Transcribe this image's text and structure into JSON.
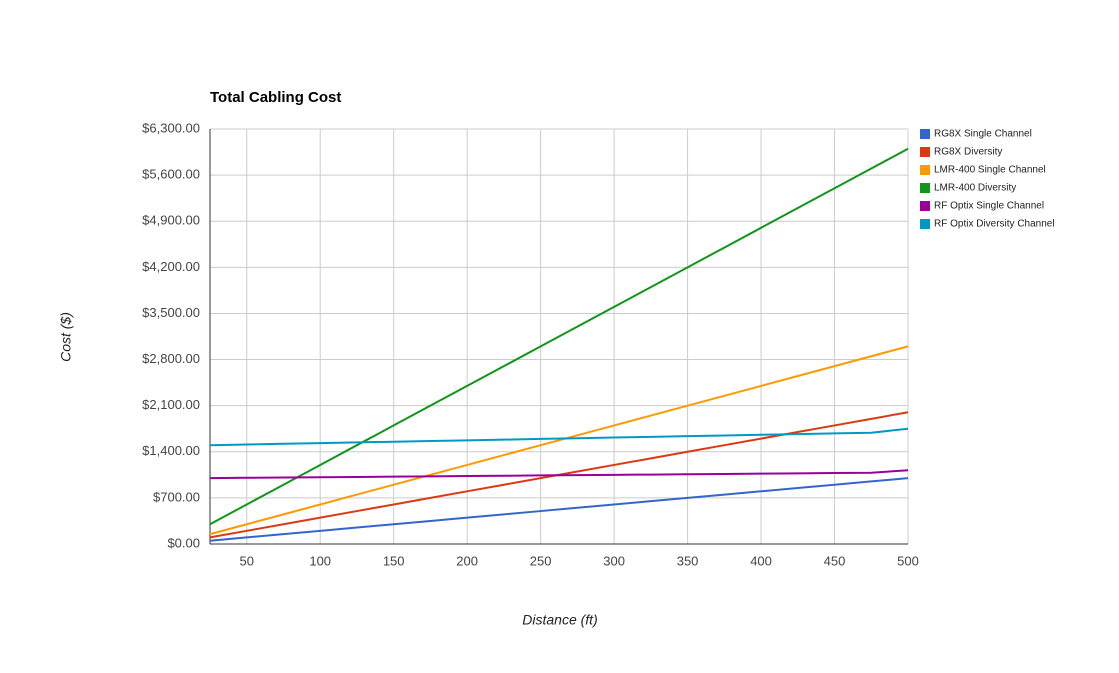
{
  "chart_data": {
    "type": "line",
    "title": "Total Cabling Cost",
    "x_label": "Distance (ft)",
    "y_label": "Cost ($)",
    "x": [
      25,
      50,
      75,
      100,
      125,
      150,
      175,
      200,
      225,
      250,
      275,
      300,
      325,
      350,
      375,
      400,
      425,
      450,
      475,
      500
    ],
    "series": [
      {
        "name": "RG8X Single Channel",
        "color": "#3366cc",
        "values": [
          50,
          100,
          150,
          200,
          250,
          300,
          350,
          400,
          450,
          500,
          550,
          600,
          650,
          700,
          750,
          800,
          850,
          900,
          950,
          1000
        ]
      },
      {
        "name": "RG8X Diversity",
        "color": "#dc3912",
        "values": [
          100,
          200,
          300,
          400,
          500,
          600,
          700,
          800,
          900,
          1000,
          1100,
          1200,
          1300,
          1400,
          1500,
          1600,
          1700,
          1800,
          1900,
          2000
        ]
      },
      {
        "name": "LMR-400 Single Channel",
        "color": "#ff9900",
        "values": [
          150,
          300,
          450,
          600,
          750,
          900,
          1050,
          1200,
          1350,
          1500,
          1650,
          1800,
          1950,
          2100,
          2250,
          2400,
          2550,
          2700,
          2850,
          3000
        ]
      },
      {
        "name": "LMR-400 Diversity",
        "color": "#109618",
        "values": [
          300,
          600,
          900,
          1200,
          1500,
          1800,
          2100,
          2400,
          2700,
          3000,
          3300,
          3600,
          3900,
          4200,
          4500,
          4800,
          5100,
          5400,
          5700,
          6000
        ]
      },
      {
        "name": "RF Optix Single Channel",
        "color": "#990099",
        "values": [
          1000,
          1005,
          1009,
          1014,
          1018,
          1023,
          1027,
          1032,
          1036,
          1041,
          1045,
          1050,
          1054,
          1059,
          1063,
          1068,
          1072,
          1077,
          1081,
          1120
        ]
      },
      {
        "name": "RF Optix Diversity Channel",
        "color": "#0099c6",
        "values": [
          1500,
          1511,
          1521,
          1532,
          1542,
          1553,
          1563,
          1574,
          1584,
          1595,
          1605,
          1616,
          1626,
          1637,
          1647,
          1658,
          1668,
          1679,
          1689,
          1750
        ]
      }
    ],
    "xlim": [
      25,
      500
    ],
    "xticks": [
      50,
      100,
      150,
      200,
      250,
      300,
      350,
      400,
      450,
      500
    ],
    "ylim": [
      0,
      6300
    ],
    "yticks": [
      {
        "value": 0,
        "label": "$0.00"
      },
      {
        "value": 700,
        "label": "$700.00"
      },
      {
        "value": 1400,
        "label": "$1,400.00"
      },
      {
        "value": 2100,
        "label": "$2,100.00"
      },
      {
        "value": 2800,
        "label": "$2,800.00"
      },
      {
        "value": 3500,
        "label": "$3,500.00"
      },
      {
        "value": 4200,
        "label": "$4,200.00"
      },
      {
        "value": 4900,
        "label": "$4,900.00"
      },
      {
        "value": 5600,
        "label": "$5,600.00"
      },
      {
        "value": 6300,
        "label": "$6,300.00"
      }
    ],
    "grid": true,
    "legend": "right"
  }
}
